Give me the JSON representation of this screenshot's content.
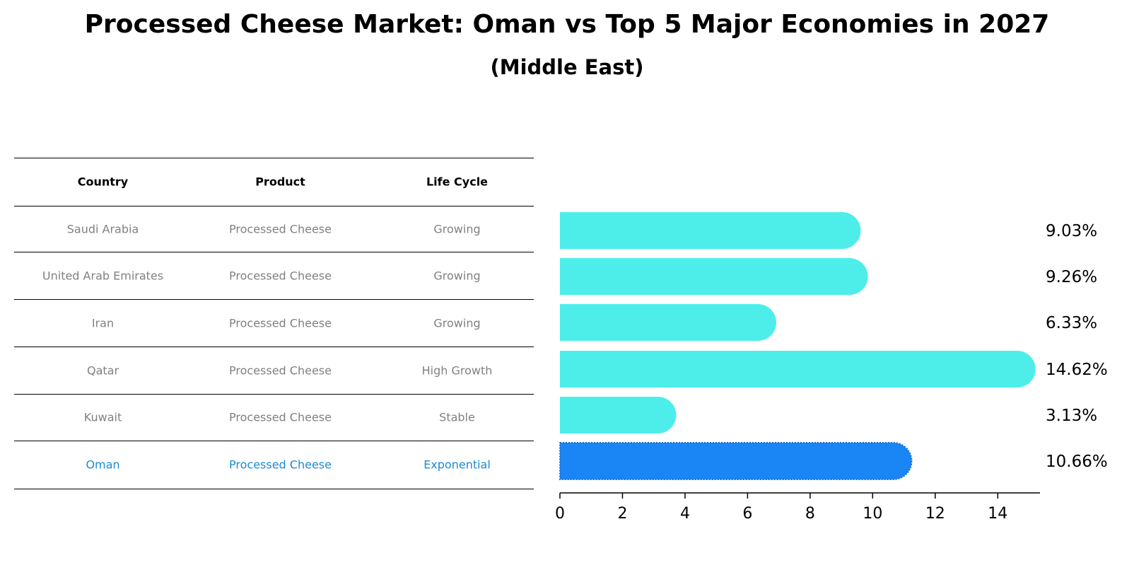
{
  "title": "Processed Cheese Market: Oman vs Top 5 Major Economies in 2027",
  "subtitle": "(Middle East)",
  "table": {
    "headers": [
      "Country",
      "Product",
      "Life Cycle"
    ],
    "rows": [
      {
        "country": "Saudi Arabia",
        "product": "Processed Cheese",
        "life_cycle": "Growing"
      },
      {
        "country": "United Arab Emirates",
        "product": "Processed Cheese",
        "life_cycle": "Growing"
      },
      {
        "country": "Iran",
        "product": "Processed Cheese",
        "life_cycle": "Growing"
      },
      {
        "country": "Qatar",
        "product": "Processed Cheese",
        "life_cycle": "High Growth"
      },
      {
        "country": "Kuwait",
        "product": "Processed Cheese",
        "life_cycle": "Stable"
      },
      {
        "country": "Oman",
        "product": "Processed Cheese",
        "life_cycle": "Exponential"
      }
    ]
  },
  "colors": {
    "bar": "#4deeea",
    "highlight_bar": "#1a85f5",
    "highlight_text": "#1a8ad4",
    "row_text": "#808080"
  },
  "chart_data": {
    "type": "bar",
    "orientation": "horizontal",
    "categories": [
      "Saudi Arabia",
      "United Arab Emirates",
      "Iran",
      "Qatar",
      "Kuwait",
      "Oman"
    ],
    "values": [
      9.03,
      9.26,
      6.33,
      14.62,
      3.13,
      10.66
    ],
    "value_labels": [
      "9.03%",
      "9.26%",
      "6.33%",
      "14.62%",
      "3.13%",
      "10.66%"
    ],
    "highlight": "Oman",
    "xlim": [
      0,
      15.35
    ],
    "xticks": [
      0,
      2,
      4,
      6,
      8,
      10,
      12,
      14
    ],
    "grid": false
  }
}
